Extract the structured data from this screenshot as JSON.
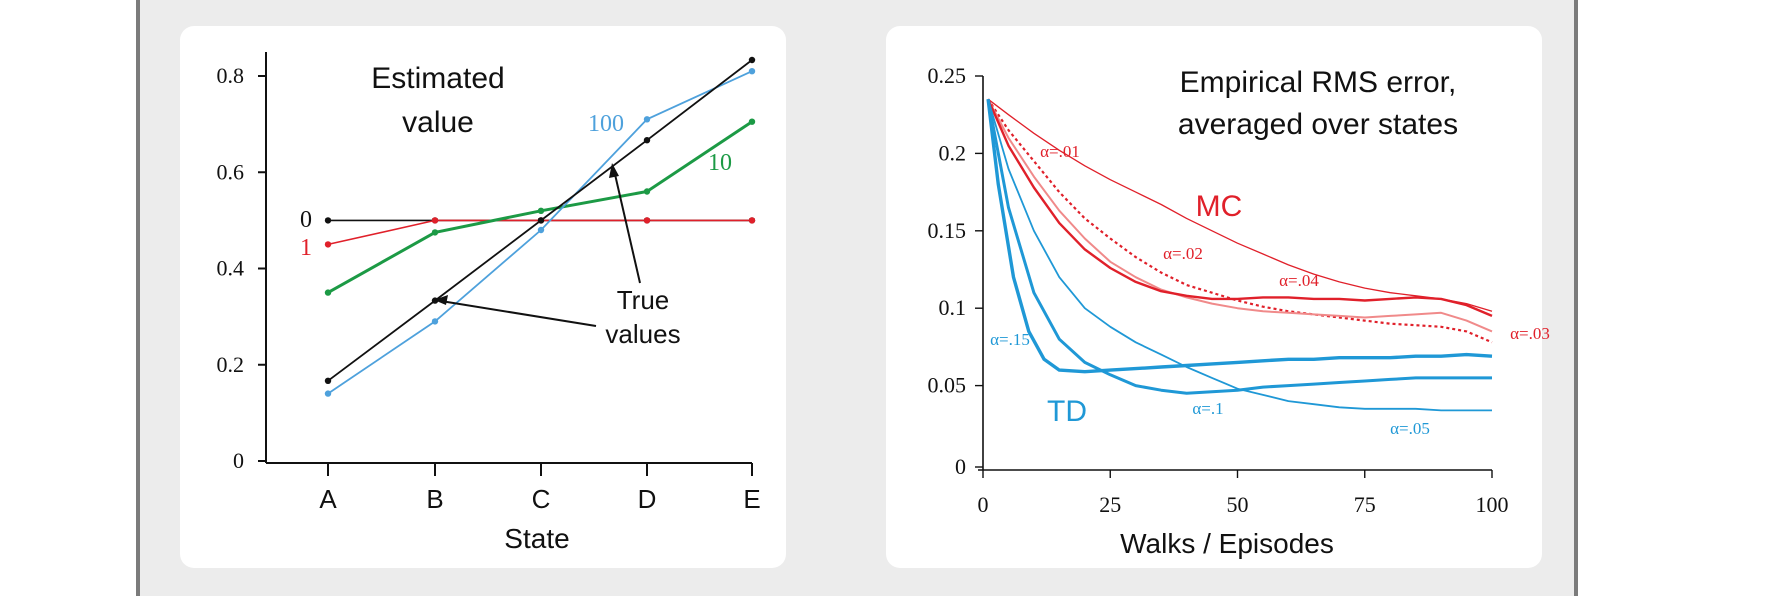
{
  "chart_data": [
    {
      "type": "line",
      "title": [
        "Estimated",
        "value"
      ],
      "xlabel": "State",
      "ylabel": "",
      "categories": [
        "A",
        "B",
        "C",
        "D",
        "E"
      ],
      "ylim": [
        0,
        0.8
      ],
      "yticks": [
        "0",
        "0.2",
        "0.4",
        "0.6",
        "0.8"
      ],
      "grid": false,
      "series": [
        {
          "name": "0",
          "color": "#111111",
          "values": [
            0.5,
            0.5,
            0.5,
            0.5,
            0.5
          ]
        },
        {
          "name": "1",
          "color": "#e0202a",
          "values": [
            0.45,
            0.5,
            0.5,
            0.5,
            0.5
          ]
        },
        {
          "name": "10",
          "color": "#1c9a45",
          "values": [
            0.35,
            0.475,
            0.52,
            0.56,
            0.705
          ]
        },
        {
          "name": "100",
          "color": "#4ea1dc",
          "values": [
            0.14,
            0.29,
            0.48,
            0.71,
            0.81
          ]
        },
        {
          "name": "True values",
          "color": "#111111",
          "values": [
            0.1667,
            0.3333,
            0.5,
            0.6667,
            0.8333
          ]
        }
      ],
      "annotation": [
        "True",
        "values"
      ]
    },
    {
      "type": "line",
      "title": [
        "Empirical RMS error,",
        "averaged over states"
      ],
      "xlabel": "Walks / Episodes",
      "ylabel": "",
      "x": [
        0,
        25,
        50,
        75,
        100
      ],
      "xlim": [
        0,
        100
      ],
      "ylim": [
        0,
        0.25
      ],
      "xticks": [
        "0",
        "25",
        "50",
        "75",
        "100"
      ],
      "yticks": [
        "0",
        "0.05",
        "0.1",
        "0.15",
        "0.2",
        "0.25"
      ],
      "grid": false,
      "group_labels": {
        "MC": "MC",
        "TD": "TD"
      },
      "colors": {
        "MC": "#e0202a",
        "MC_light": "#f08a8a",
        "TD": "#1f98d6"
      },
      "series": [
        {
          "name": "α=.01",
          "group": "MC",
          "style": "thin",
          "points": [
            [
              1,
              0.235
            ],
            [
              5,
              0.225
            ],
            [
              10,
              0.213
            ],
            [
              15,
              0.202
            ],
            [
              20,
              0.192
            ],
            [
              25,
              0.183
            ],
            [
              30,
              0.175
            ],
            [
              35,
              0.167
            ],
            [
              40,
              0.158
            ],
            [
              45,
              0.15
            ],
            [
              50,
              0.142
            ],
            [
              55,
              0.135
            ],
            [
              60,
              0.128
            ],
            [
              65,
              0.122
            ],
            [
              70,
              0.117
            ],
            [
              75,
              0.113
            ],
            [
              80,
              0.11
            ],
            [
              85,
              0.108
            ],
            [
              90,
              0.106
            ],
            [
              95,
              0.103
            ],
            [
              100,
              0.098
            ]
          ]
        },
        {
          "name": "α=.02",
          "group": "MC",
          "style": "dotted",
          "points": [
            [
              1,
              0.235
            ],
            [
              5,
              0.215
            ],
            [
              10,
              0.195
            ],
            [
              15,
              0.175
            ],
            [
              20,
              0.158
            ],
            [
              25,
              0.145
            ],
            [
              30,
              0.133
            ],
            [
              35,
              0.123
            ],
            [
              40,
              0.115
            ],
            [
              45,
              0.11
            ],
            [
              50,
              0.105
            ],
            [
              55,
              0.101
            ],
            [
              60,
              0.098
            ],
            [
              65,
              0.096
            ],
            [
              70,
              0.094
            ],
            [
              75,
              0.092
            ],
            [
              80,
              0.09
            ],
            [
              85,
              0.089
            ],
            [
              90,
              0.088
            ],
            [
              95,
              0.085
            ],
            [
              100,
              0.078
            ]
          ]
        },
        {
          "name": "α=.03",
          "group": "MC",
          "style": "light",
          "points": [
            [
              1,
              0.235
            ],
            [
              5,
              0.21
            ],
            [
              10,
              0.185
            ],
            [
              15,
              0.163
            ],
            [
              20,
              0.145
            ],
            [
              25,
              0.13
            ],
            [
              30,
              0.12
            ],
            [
              35,
              0.112
            ],
            [
              40,
              0.107
            ],
            [
              45,
              0.103
            ],
            [
              50,
              0.1
            ],
            [
              55,
              0.098
            ],
            [
              60,
              0.097
            ],
            [
              65,
              0.096
            ],
            [
              70,
              0.095
            ],
            [
              75,
              0.094
            ],
            [
              80,
              0.095
            ],
            [
              85,
              0.096
            ],
            [
              90,
              0.097
            ],
            [
              95,
              0.092
            ],
            [
              100,
              0.085
            ]
          ]
        },
        {
          "name": "α=.04",
          "group": "MC",
          "style": "medium",
          "points": [
            [
              1,
              0.235
            ],
            [
              5,
              0.205
            ],
            [
              10,
              0.178
            ],
            [
              15,
              0.155
            ],
            [
              20,
              0.138
            ],
            [
              25,
              0.126
            ],
            [
              30,
              0.117
            ],
            [
              35,
              0.111
            ],
            [
              40,
              0.108
            ],
            [
              45,
              0.106
            ],
            [
              50,
              0.106
            ],
            [
              55,
              0.107
            ],
            [
              60,
              0.107
            ],
            [
              65,
              0.106
            ],
            [
              70,
              0.106
            ],
            [
              75,
              0.105
            ],
            [
              80,
              0.106
            ],
            [
              85,
              0.107
            ],
            [
              90,
              0.106
            ],
            [
              95,
              0.102
            ],
            [
              100,
              0.095
            ]
          ]
        },
        {
          "name": "α=.05",
          "group": "TD",
          "style": "thin",
          "points": [
            [
              1,
              0.235
            ],
            [
              5,
              0.19
            ],
            [
              10,
              0.15
            ],
            [
              15,
              0.12
            ],
            [
              20,
              0.1
            ],
            [
              25,
              0.088
            ],
            [
              30,
              0.078
            ],
            [
              35,
              0.07
            ],
            [
              40,
              0.062
            ],
            [
              45,
              0.055
            ],
            [
              50,
              0.048
            ],
            [
              55,
              0.044
            ],
            [
              60,
              0.04
            ],
            [
              65,
              0.038
            ],
            [
              70,
              0.036
            ],
            [
              75,
              0.035
            ],
            [
              80,
              0.035
            ],
            [
              85,
              0.035
            ],
            [
              90,
              0.034
            ],
            [
              95,
              0.034
            ],
            [
              100,
              0.034
            ]
          ]
        },
        {
          "name": "α=.1",
          "group": "TD",
          "style": "medium",
          "points": [
            [
              1,
              0.235
            ],
            [
              5,
              0.165
            ],
            [
              10,
              0.11
            ],
            [
              15,
              0.08
            ],
            [
              20,
              0.065
            ],
            [
              25,
              0.057
            ],
            [
              30,
              0.05
            ],
            [
              35,
              0.047
            ],
            [
              40,
              0.045
            ],
            [
              45,
              0.046
            ],
            [
              50,
              0.047
            ],
            [
              55,
              0.049
            ],
            [
              60,
              0.05
            ],
            [
              65,
              0.051
            ],
            [
              70,
              0.052
            ],
            [
              75,
              0.053
            ],
            [
              80,
              0.054
            ],
            [
              85,
              0.055
            ],
            [
              90,
              0.055
            ],
            [
              95,
              0.055
            ],
            [
              100,
              0.055
            ]
          ]
        },
        {
          "name": "α=.15",
          "group": "TD",
          "style": "thick",
          "points": [
            [
              1,
              0.235
            ],
            [
              3,
              0.18
            ],
            [
              6,
              0.12
            ],
            [
              9,
              0.085
            ],
            [
              12,
              0.067
            ],
            [
              15,
              0.06
            ],
            [
              20,
              0.059
            ],
            [
              25,
              0.06
            ],
            [
              30,
              0.061
            ],
            [
              35,
              0.062
            ],
            [
              40,
              0.063
            ],
            [
              45,
              0.064
            ],
            [
              50,
              0.065
            ],
            [
              55,
              0.066
            ],
            [
              60,
              0.067
            ],
            [
              65,
              0.067
            ],
            [
              70,
              0.068
            ],
            [
              75,
              0.068
            ],
            [
              80,
              0.068
            ],
            [
              85,
              0.069
            ],
            [
              90,
              0.069
            ],
            [
              95,
              0.07
            ],
            [
              100,
              0.069
            ]
          ]
        }
      ]
    }
  ]
}
